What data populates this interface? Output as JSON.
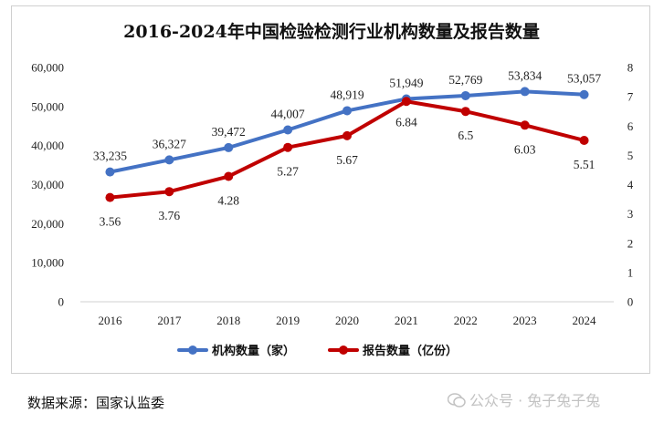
{
  "chart_data": {
    "type": "line",
    "title": "2016-2024年中国检验检测行业机构数量及报告数量",
    "categories": [
      "2016",
      "2017",
      "2018",
      "2019",
      "2020",
      "2021",
      "2022",
      "2023",
      "2024"
    ],
    "series": [
      {
        "name": "机构数量（家）",
        "axis": "left",
        "color": "#4472c4",
        "values": [
          33235,
          36327,
          39472,
          44007,
          48919,
          51949,
          52769,
          53834,
          53057
        ],
        "labels": [
          "33,235",
          "36,327",
          "39,472",
          "44,007",
          "48,919",
          "51,949",
          "52,769",
          "53,834",
          "53,057"
        ]
      },
      {
        "name": "报告数量（亿份）",
        "axis": "right",
        "color": "#c00000",
        "values": [
          3.56,
          3.76,
          4.28,
          5.27,
          5.67,
          6.84,
          6.5,
          6.03,
          5.51
        ],
        "labels": [
          "3.56",
          "3.76",
          "4.28",
          "5.27",
          "5.67",
          "6.84",
          "6.5",
          "6.03",
          "5.51"
        ]
      }
    ],
    "y_left": {
      "min": 0,
      "max": 60000,
      "ticks": [
        0,
        10000,
        20000,
        30000,
        40000,
        50000,
        60000
      ],
      "tick_labels": [
        "0",
        "10,000",
        "20,000",
        "30,000",
        "40,000",
        "50,000",
        "60,000"
      ]
    },
    "y_right": {
      "min": 0,
      "max": 8,
      "ticks": [
        0,
        1,
        2,
        3,
        4,
        5,
        6,
        7,
        8
      ],
      "tick_labels": [
        "0",
        "1",
        "2",
        "3",
        "4",
        "5",
        "6",
        "7",
        "8"
      ]
    },
    "legend_position": "bottom",
    "grid": false
  },
  "source_note": "数据来源：国家认监委",
  "watermark": "公众号 · 兔子兔子兔"
}
